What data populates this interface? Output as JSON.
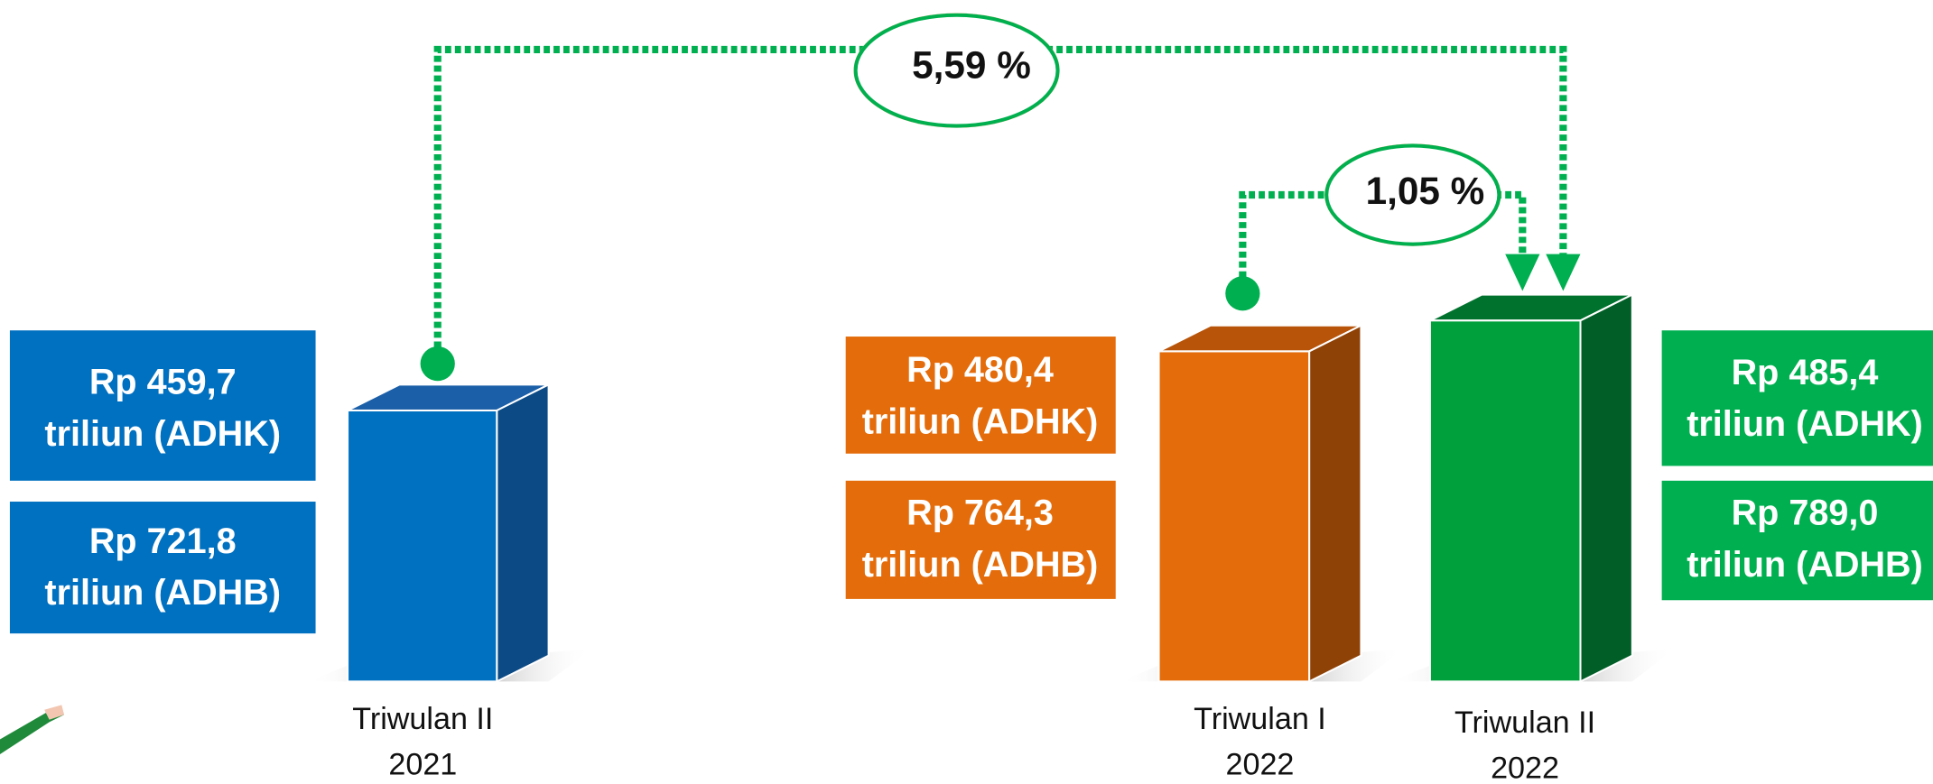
{
  "periods": [
    {
      "label": [
        "Triwulan II",
        "2021"
      ],
      "boxes": [
        [
          "Rp 459,7",
          "triliun (ADHK)"
        ],
        [
          "Rp 721,8",
          "triliun (ADHB)"
        ]
      ]
    },
    {
      "label": [
        "Triwulan I",
        "2022"
      ],
      "boxes": [
        [
          "Rp 480,4",
          "triliun (ADHK)"
        ],
        [
          "Rp 764,3",
          "triliun (ADHB)"
        ]
      ]
    },
    {
      "label": [
        "Triwulan II",
        "2022"
      ],
      "boxes": [
        [
          "Rp 485,4",
          "triliun (ADHK)"
        ],
        [
          "Rp 789,0",
          "triliun (ADHB)"
        ]
      ]
    }
  ],
  "growth": [
    "5,59 %",
    "1,05 %"
  ]
}
